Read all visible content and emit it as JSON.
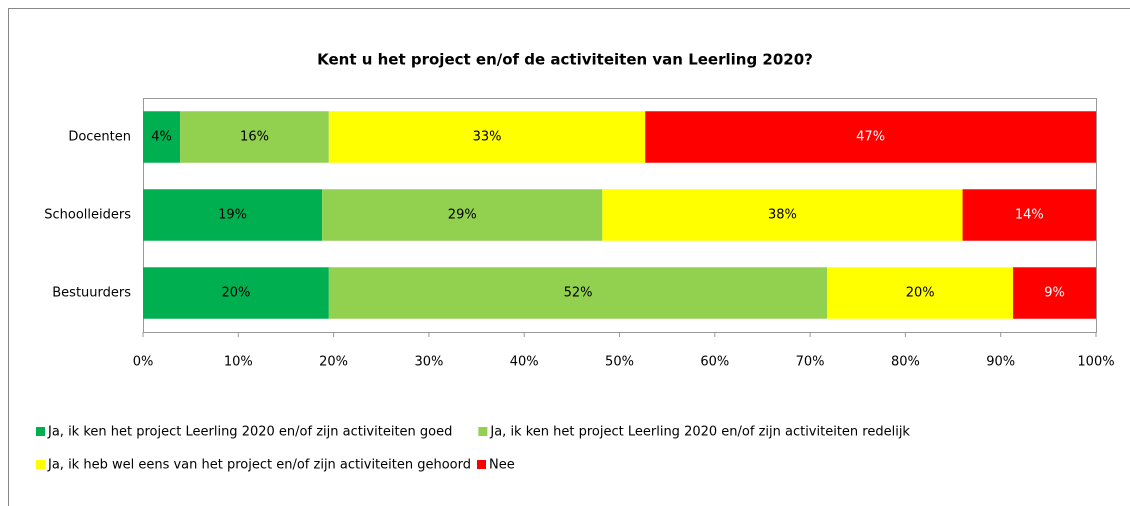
{
  "chart_data": {
    "type": "stacked_barh",
    "title": "Kent u het project en/of de activiteiten van Leerling 2020?",
    "categories": [
      "Docenten",
      "Schoolleiders",
      "Bestuurders"
    ],
    "series": [
      {
        "name": "Ja, ik ken het project Leerling 2020 en/of zijn activiteiten goed",
        "color": "#00b050",
        "label_color": "#000000",
        "values": [
          3.9,
          18.8,
          19.5
        ],
        "value_labels": [
          "4%",
          "19%",
          "20%"
        ]
      },
      {
        "name": "Ja, ik ken het project Leerling 2020 en/of zijn activiteiten redelijk",
        "color": "#92d050",
        "label_color": "#000000",
        "values": [
          15.6,
          29.4,
          52.3
        ],
        "value_labels": [
          "16%",
          "29%",
          "52%"
        ]
      },
      {
        "name": "Ja, ik heb wel eens van het project en/of zijn activiteiten gehoord",
        "color": "#ffff00",
        "label_color": "#000000",
        "values": [
          33.2,
          37.8,
          19.5
        ],
        "value_labels": [
          "33%",
          "38%",
          "20%"
        ]
      },
      {
        "name": "Nee",
        "color": "#ff0000",
        "label_color": "#ffffff",
        "values": [
          47.3,
          14,
          8.7
        ],
        "value_labels": [
          "47%",
          "14%",
          "9%"
        ]
      }
    ],
    "xlim": [
      0,
      100
    ],
    "xticks": [
      {
        "value": 0,
        "label": "0%"
      },
      {
        "value": 10,
        "label": "10%"
      },
      {
        "value": 20,
        "label": "20%"
      },
      {
        "value": 30,
        "label": "30%"
      },
      {
        "value": 40,
        "label": "40%"
      },
      {
        "value": 50,
        "label": "50%"
      },
      {
        "value": 60,
        "label": "60%"
      },
      {
        "value": 70,
        "label": "70%"
      },
      {
        "value": 80,
        "label": "80%"
      },
      {
        "value": 90,
        "label": "90%"
      },
      {
        "value": 100,
        "label": "100%"
      }
    ],
    "legend": "bottom"
  }
}
